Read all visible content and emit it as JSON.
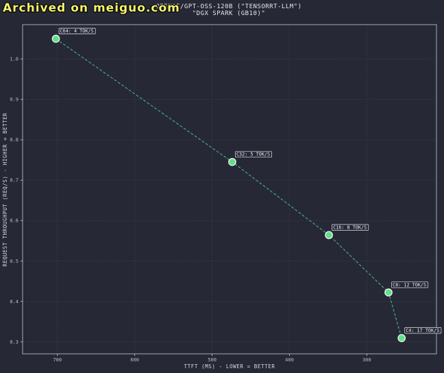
{
  "watermark": "Archived on meiguo.com",
  "colors": {
    "background": "#262935",
    "point_fill": "#5fe089",
    "line": "#4fae88"
  },
  "chart_data": {
    "type": "scatter",
    "title_lines": [
      "OPENAI/GPT-OSS-120B (\"TENSORRT-LLM\")",
      "\"DGX SPARK (GB10)\""
    ],
    "xlabel": "TTFT (MS) - LOWER = BETTER",
    "ylabel": "REQUEST THROUGHPUT (REQ/S) - HIGHER = BETTER",
    "x_inverted": true,
    "xlim": [
      745,
      210
    ],
    "ylim": [
      0.27,
      1.085
    ],
    "xticks": [
      700,
      600,
      500,
      400,
      300
    ],
    "yticks": [
      0.3,
      0.4,
      0.5,
      0.6,
      0.7,
      0.8,
      0.9,
      1.0
    ],
    "grid": true,
    "connect_points": true,
    "points": [
      {
        "label": "C64: 4 TOK/S",
        "x": 702,
        "y": 1.05
      },
      {
        "label": "C32: 5 TOK/S",
        "x": 474,
        "y": 0.745
      },
      {
        "label": "C16: 8 TOK/S",
        "x": 349,
        "y": 0.564
      },
      {
        "label": "C8: 12 TOK/S",
        "x": 272,
        "y": 0.422
      },
      {
        "label": "C4: 17 TOK/S",
        "x": 255,
        "y": 0.309
      }
    ]
  }
}
